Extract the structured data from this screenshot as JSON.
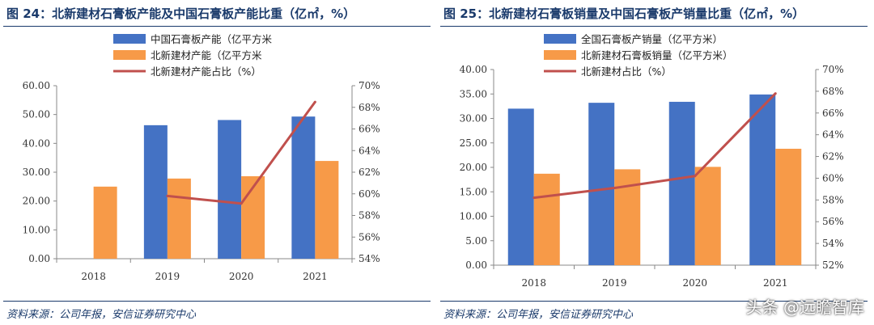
{
  "left": {
    "title": "图 24：北新建材石膏板产能及中国石膏板产能比重（亿㎡，%）",
    "source": "资料来源：公司年报，安信证券研究中心"
  },
  "right": {
    "title": "图 25：北新建材石膏板销量及中国石膏板产销量比重（亿㎡，%）",
    "source": "资料来源：公司年报，安信证券研究中心"
  },
  "watermark": "头条 @远瞻智库",
  "colors": {
    "blue": "#4472C4",
    "orange": "#F79A48",
    "red": "#C0504D"
  },
  "chart_data": [
    {
      "type": "bar",
      "categories": [
        "2018",
        "2019",
        "2020",
        "2021"
      ],
      "series": [
        {
          "name": "中国石膏板产能（亿平方米",
          "kind": "bar",
          "axis": "left",
          "color": "#4472C4",
          "values": [
            null,
            46.3,
            48.1,
            49.3
          ]
        },
        {
          "name": "北新建材产能（亿平方米",
          "kind": "bar",
          "axis": "left",
          "color": "#F79A48",
          "values": [
            25.0,
            27.8,
            28.6,
            33.9
          ]
        },
        {
          "name": "北新建材产能占比（%）",
          "kind": "line",
          "axis": "right",
          "color": "#C0504D",
          "values": [
            null,
            59.8,
            59.1,
            68.5
          ]
        }
      ],
      "ylim": [
        0,
        60
      ],
      "yticks": [
        "0.00",
        "10.00",
        "20.00",
        "30.00",
        "40.00",
        "50.00",
        "60.00"
      ],
      "y2lim": [
        54,
        70
      ],
      "y2ticks": [
        "54%",
        "56%",
        "58%",
        "60%",
        "62%",
        "64%",
        "66%",
        "68%",
        "70%"
      ],
      "grid": false,
      "legend": "top-center"
    },
    {
      "type": "bar",
      "categories": [
        "2018",
        "2019",
        "2020",
        "2021"
      ],
      "series": [
        {
          "name": "全国石膏板产销量（亿平方米）",
          "kind": "bar",
          "axis": "left",
          "color": "#4472C4",
          "values": [
            32.0,
            33.2,
            33.4,
            34.9
          ]
        },
        {
          "name": "北新建材石膏板销量（亿平方米）",
          "kind": "bar",
          "axis": "left",
          "color": "#F79A48",
          "values": [
            18.7,
            19.6,
            20.1,
            23.8
          ]
        },
        {
          "name": "北新建材占比（%）",
          "kind": "line",
          "axis": "right",
          "color": "#C0504D",
          "values": [
            58.2,
            59.1,
            60.2,
            67.8
          ]
        }
      ],
      "ylim": [
        0,
        40
      ],
      "yticks": [
        "0.00",
        "5.00",
        "10.00",
        "15.00",
        "20.00",
        "25.00",
        "30.00",
        "35.00",
        "40.00"
      ],
      "y2lim": [
        52,
        70
      ],
      "y2ticks": [
        "52%",
        "54%",
        "56%",
        "58%",
        "60%",
        "62%",
        "64%",
        "66%",
        "68%",
        "70%"
      ],
      "grid": false,
      "legend": "top-center"
    }
  ]
}
